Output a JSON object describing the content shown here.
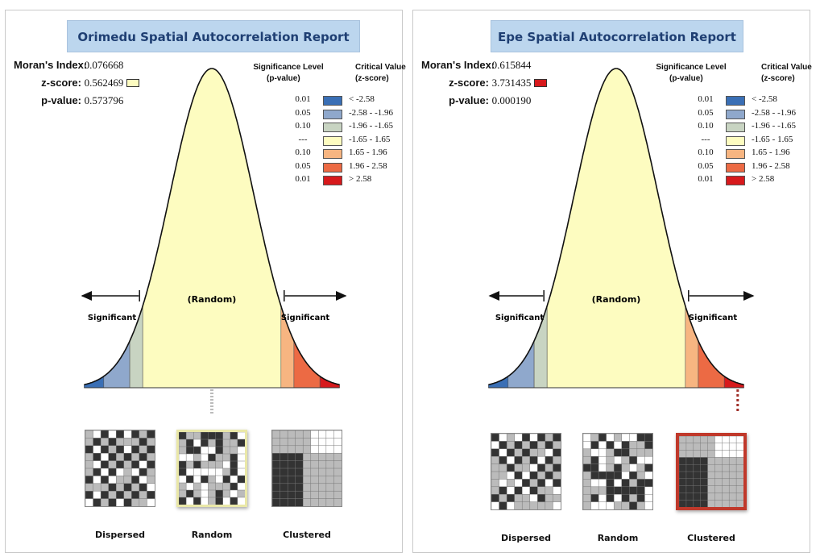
{
  "reports": [
    {
      "title": "Orimedu Spatial Autocorrelation Report",
      "morans_label": "Moran's Index:",
      "morans_value": "0.076668",
      "z_label": "z-score:",
      "z_value": "0.562469",
      "z_color": "#fdfcc0",
      "p_label": "p-value:",
      "p_value": "0.573796",
      "highlight": "Random",
      "highlight_color": "#eae8a8"
    },
    {
      "title": "Epe Spatial Autocorrelation Report",
      "morans_label": "Moran's Index:",
      "morans_value": "0.615844",
      "z_label": "z-score:",
      "z_value": "3.731435",
      "z_color": "#d7191c",
      "p_label": "p-value:",
      "p_value": "0.000190",
      "highlight": "Clustered",
      "highlight_color": "#c0392b"
    }
  ],
  "legend": {
    "sig_header": [
      "Significance Level",
      "(p-value)"
    ],
    "cv_header": [
      "Critical Value",
      "(z-score)"
    ],
    "rows": [
      {
        "p": "0.01",
        "cv": "< -2.58",
        "color": "#3a6fb5"
      },
      {
        "p": "0.05",
        "cv": "-2.58 - -1.96",
        "color": "#8fa8cc"
      },
      {
        "p": "0.10",
        "cv": "-1.96 - -1.65",
        "color": "#c8d4c2"
      },
      {
        "p": "---",
        "cv": "-1.65 - 1.65",
        "color": "#fdfcc0"
      },
      {
        "p": "0.10",
        "cv": "1.65 - 1.96",
        "color": "#f7b581"
      },
      {
        "p": "0.05",
        "cv": "1.96 - 2.58",
        "color": "#ec6a44"
      },
      {
        "p": "0.01",
        "cv": "> 2.58",
        "color": "#d7191c"
      }
    ]
  },
  "curve_labels": {
    "random": "(Random)",
    "significant_left": "Significant",
    "significant_right": "Significant"
  },
  "patterns": [
    "Dispersed",
    "Random",
    "Clustered"
  ]
}
